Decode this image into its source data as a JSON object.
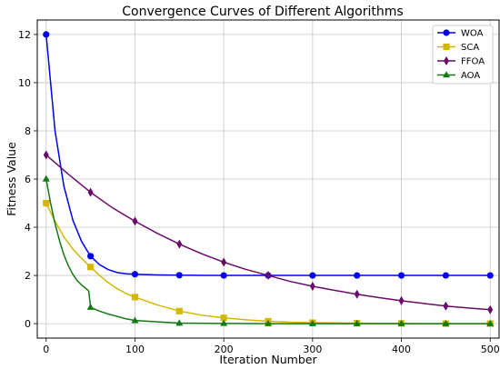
{
  "chart_data": {
    "type": "line",
    "title": "Convergence Curves of Different Algorithms",
    "xlabel": "Iteration Number",
    "ylabel": "Fitness Value",
    "xlim": [
      -10,
      510
    ],
    "ylim": [
      -0.6,
      12.6
    ],
    "xticks": [
      0,
      100,
      200,
      300,
      400,
      500
    ],
    "yticks": [
      0,
      2,
      4,
      6,
      8,
      10,
      12
    ],
    "grid": true,
    "legend_position": "top-right",
    "series": [
      {
        "name": "WOA",
        "color": "#0000ee",
        "marker": "circle",
        "x": [
          0,
          10,
          20,
          30,
          40,
          50,
          60,
          70,
          80,
          90,
          100,
          125,
          150,
          175,
          200,
          225,
          250,
          275,
          300,
          325,
          350,
          375,
          400,
          425,
          450,
          475,
          500
        ],
        "values": [
          12,
          8.0,
          5.7,
          4.3,
          3.4,
          2.8,
          2.45,
          2.24,
          2.12,
          2.07,
          2.05,
          2.02,
          2.01,
          2.0,
          2.0,
          2.0,
          2.0,
          2.0,
          2.0,
          2.0,
          2.0,
          2.0,
          2.0,
          2.0,
          2.0,
          2.0,
          2.0
        ],
        "marker_x": [
          0,
          50,
          100,
          150,
          200,
          250,
          300,
          350,
          400,
          450,
          500
        ]
      },
      {
        "name": "SCA",
        "color": "#d4b800",
        "marker": "square",
        "x": [
          0,
          10,
          20,
          30,
          40,
          50,
          60,
          70,
          80,
          90,
          100,
          125,
          150,
          175,
          200,
          225,
          250,
          275,
          300,
          325,
          350,
          375,
          400,
          425,
          450,
          475,
          500
        ],
        "values": [
          5.0,
          4.25,
          3.6,
          3.1,
          2.7,
          2.35,
          2.0,
          1.7,
          1.45,
          1.25,
          1.1,
          0.78,
          0.52,
          0.35,
          0.24,
          0.16,
          0.1,
          0.06,
          0.04,
          0.03,
          0.02,
          0.01,
          0.01,
          0.0,
          0.0,
          0.0,
          0.0
        ],
        "marker_x": [
          0,
          50,
          100,
          150,
          200,
          250,
          300,
          350,
          400,
          450,
          500
        ]
      },
      {
        "name": "FFOA",
        "color": "#6a0a6a",
        "marker": "diamond",
        "x": [
          0,
          25,
          50,
          75,
          100,
          125,
          150,
          175,
          200,
          225,
          250,
          275,
          300,
          325,
          350,
          375,
          400,
          425,
          450,
          475,
          500
        ],
        "values": [
          7.0,
          6.2,
          5.45,
          4.8,
          4.25,
          3.75,
          3.3,
          2.9,
          2.55,
          2.25,
          2.0,
          1.75,
          1.55,
          1.38,
          1.22,
          1.08,
          0.95,
          0.84,
          0.73,
          0.65,
          0.58
        ],
        "marker_x": [
          0,
          50,
          100,
          150,
          200,
          250,
          300,
          350,
          400,
          450,
          500
        ]
      },
      {
        "name": "AOA",
        "color": "#137a13",
        "marker": "triangle",
        "x": [
          0,
          5,
          10,
          15,
          20,
          25,
          30,
          35,
          40,
          45,
          48,
          50,
          60,
          70,
          80,
          90,
          100,
          150,
          200,
          250,
          300,
          350,
          400,
          450,
          500
        ],
        "values": [
          6.0,
          5.0,
          4.15,
          3.45,
          2.85,
          2.4,
          2.05,
          1.78,
          1.6,
          1.45,
          1.35,
          0.68,
          0.52,
          0.4,
          0.3,
          0.2,
          0.13,
          0.02,
          0.01,
          0.0,
          0.0,
          0.0,
          0.0,
          0.0,
          0.0
        ],
        "marker_x": [
          0,
          50,
          100,
          150,
          200,
          250,
          300,
          350,
          400,
          450,
          500
        ]
      }
    ]
  }
}
